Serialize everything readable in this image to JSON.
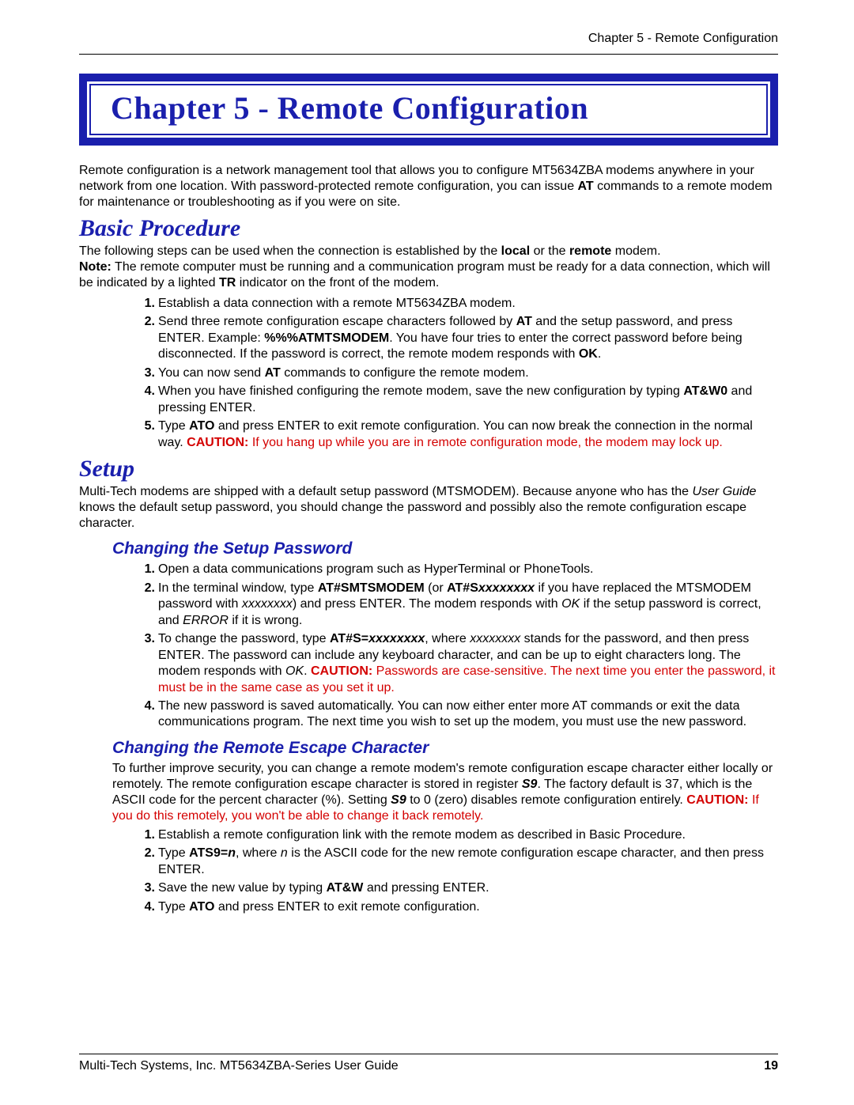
{
  "header": {
    "right": "Chapter 5 - Remote Configuration"
  },
  "chapter": {
    "title": "Chapter 5 - Remote Configuration"
  },
  "intro": {
    "p1a": "Remote configuration is a network management tool that allows you to configure MT5634ZBA modems anywhere in your network from one location. With password-protected remote configuration, you can issue ",
    "p1b": "AT",
    "p1c": " commands to a remote modem for maintenance or troubleshooting as if you were on site."
  },
  "basic": {
    "heading": "Basic Procedure",
    "p_a": "The following steps can be used when the connection is established by the ",
    "p_b": "local",
    "p_c": " or the ",
    "p_d": "remote",
    "p_e": " modem.",
    "note_label": "Note:",
    "note_a": " The remote computer must be running and a communication program must be ready for a data connection, which will be indicated by a lighted ",
    "note_b": "TR",
    "note_c": " indicator on the front of the modem.",
    "s1": "Establish a data connection with a remote MT5634ZBA modem.",
    "s2a": "Send three remote configuration escape characters followed by ",
    "s2b": "AT",
    "s2c": " and the setup password, and press E",
    "s2d": "NTER",
    "s2e": ". Example: ",
    "s2f": "%%%ATMTSMODEM",
    "s2g": ". You have four tries to enter the correct password before being disconnected. If the password is correct, the remote modem responds with ",
    "s2h": "OK",
    "s2i": ".",
    "s3a": "You can now send ",
    "s3b": "AT",
    "s3c": " commands to configure the remote modem.",
    "s4a": "When you have finished configuring the remote modem, save the new configuration by typing ",
    "s4b": "AT&W0",
    "s4c": " and pressing E",
    "s4d": "NTER",
    "s4e": ".",
    "s5a": "Type ",
    "s5b": "ATO",
    "s5c": " and press E",
    "s5d": "NTER",
    "s5e": " to exit remote configuration. You can now break the connection in the normal way. ",
    "s5f": "CAUTION:",
    "s5g": " If you hang up while you are in remote configuration mode, the modem may lock up."
  },
  "setup": {
    "heading": "Setup",
    "p_a": "Multi-Tech modems are shipped with a default setup password (MTSMODEM). Because anyone who has the ",
    "p_b": "User Guide",
    "p_c": " knows the default setup password, you should change the password and possibly also the remote configuration escape character."
  },
  "pwd": {
    "heading": "Changing the Setup Password",
    "s1": "Open a data communications program such as HyperTerminal or PhoneTools.",
    "s2a": "In the terminal window, type ",
    "s2b": "AT#SMTSMODEM",
    "s2c": " (or ",
    "s2d": "AT#S",
    "s2e": "xxxxxxxx",
    "s2f": " if you have replaced the MTSMODEM password with ",
    "s2g": "xxxxxxxx",
    "s2h": ") and press E",
    "s2i": "NTER",
    "s2j": ". The modem responds with ",
    "s2k": "OK",
    "s2l": " if the setup password is correct, and ",
    "s2m": "ERROR",
    "s2n": " if it is wrong.",
    "s3a": "To change the password, type ",
    "s3b": "AT#S=",
    "s3c": "xxxxxxxx",
    "s3d": ", where ",
    "s3e": "xxxxxxxx",
    "s3f": " stands for the password, and then press E",
    "s3g": "NTER",
    "s3h": ". The password can include any keyboard character, and can be up to eight characters long. The modem responds with ",
    "s3i": "OK",
    "s3j": ". ",
    "s3k": "CAUTION:",
    "s3l": " Passwords are case-sensitive. The next time you enter the password, it must be in the same case as you set it up.",
    "s4": "The new password is saved automatically. You can now either enter more AT commands or exit the data communications program. The next time you wish to set up the modem, you must use the new password."
  },
  "esc": {
    "heading": "Changing the Remote Escape Character",
    "p_a": "To further improve security, you can change a remote modem's remote configuration escape character either locally or remotely. The remote configuration escape character is stored in register ",
    "p_b": "S9",
    "p_c": ". The factory default is 37, which is the ASCII code for the percent character (%). Setting ",
    "p_d": "S9",
    "p_e": " to 0 (zero) disables remote configuration entirely. ",
    "p_f": "CAUTION:",
    "p_g": " If you do this remotely, you won't be able to change it back remotely.",
    "s1": "Establish a remote configuration link with the remote modem as described in Basic Procedure.",
    "s2a": "Type ",
    "s2b": "ATS9=",
    "s2c": "n",
    "s2d": ", where ",
    "s2e": "n",
    "s2f": " is the ASCII code for the new remote configuration escape character, and then press E",
    "s2g": "NTER",
    "s2h": ".",
    "s3a": "Save the new value by typing ",
    "s3b": "AT&W",
    "s3c": " and pressing E",
    "s3d": "NTER",
    "s3e": ".",
    "s4a": "Type ",
    "s4b": "ATO",
    "s4c": " and press E",
    "s4d": "NTER",
    "s4e": " to exit remote configuration."
  },
  "footer": {
    "left": "Multi-Tech Systems, Inc. MT5634ZBA-Series User Guide",
    "page": "19"
  }
}
